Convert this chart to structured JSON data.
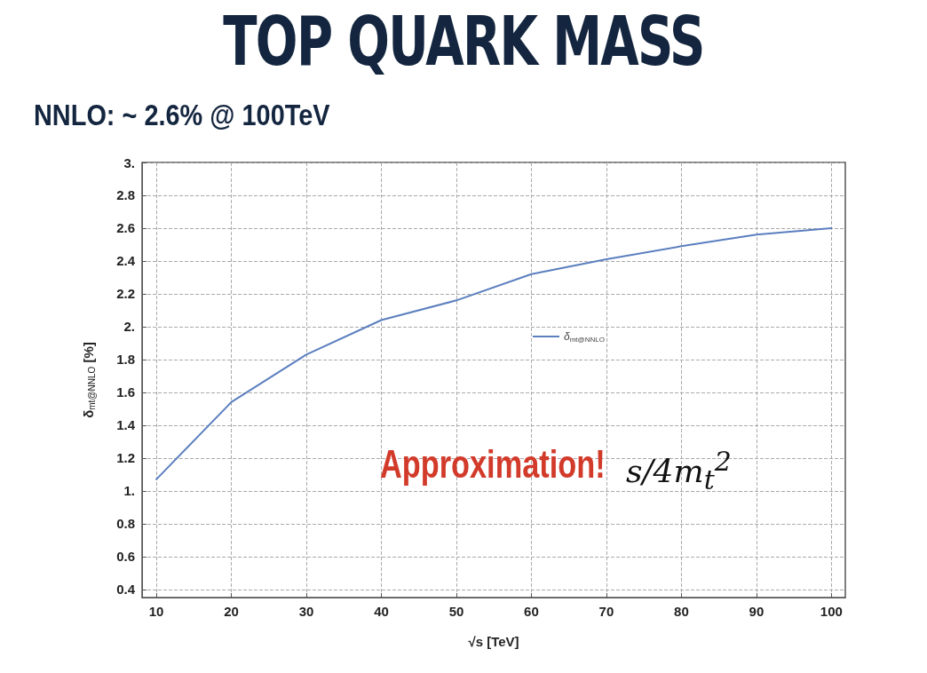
{
  "chart_data": {
    "type": "line",
    "title": "TOP QUARK MASS",
    "subtitle": "NNLO: ~ 2.6% @ 100TeV",
    "xlabel": "√s [TeV]",
    "ylabel": "δ$_{mt@NNLO}$ [%]",
    "x": [
      10,
      20,
      30,
      40,
      50,
      60,
      70,
      80,
      90,
      100
    ],
    "series": [
      {
        "name": "δ$_{mt@NNLO}$",
        "color": "#5b7fbf",
        "values": [
          1.07,
          1.54,
          1.83,
          2.04,
          2.16,
          2.32,
          2.41,
          2.49,
          2.56,
          2.6
        ]
      }
    ],
    "xlim": [
      8.1,
      101.85
    ],
    "xticks": [
      10,
      20,
      30,
      40,
      50,
      60,
      70,
      80,
      90,
      100
    ],
    "ylim": [
      0.35,
      3.0
    ],
    "yticks": [
      0.4,
      0.6,
      0.8,
      {
        "value": 1.0,
        "label": "1."
      },
      1.2,
      1.4,
      1.6,
      1.8,
      {
        "value": 2.0,
        "label": "2."
      },
      2.2,
      2.4,
      2.6,
      2.8,
      {
        "value": 3.0,
        "label": "3."
      }
    ],
    "annotations": [
      "Approximation!",
      "s/4m$_{t}$$^{2}$"
    ],
    "grid": true,
    "legend": "center",
    "marker": "none",
    "line_style": "solid"
  }
}
